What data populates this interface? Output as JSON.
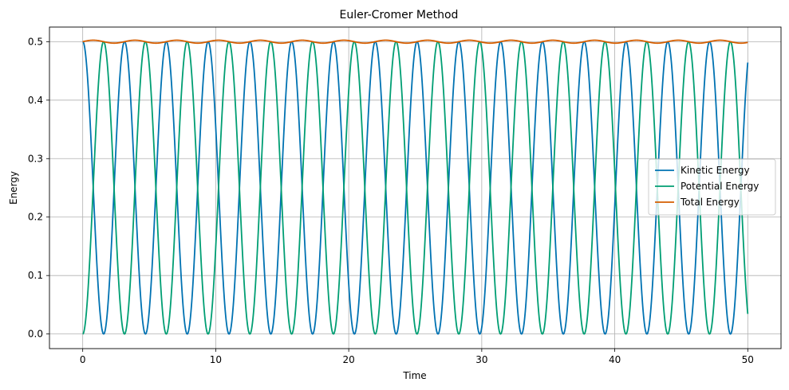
{
  "chart_data": {
    "type": "line",
    "title": "Euler-Cromer Method",
    "xlabel": "Time",
    "ylabel": "Energy",
    "xlim": [
      -2.5,
      52.5
    ],
    "ylim": [
      -0.025,
      0.525
    ],
    "xticks": [
      0,
      10,
      20,
      30,
      40,
      50
    ],
    "xtick_labels": [
      "0",
      "10",
      "20",
      "30",
      "40",
      "50"
    ],
    "yticks": [
      0.0,
      0.1,
      0.2,
      0.3,
      0.4,
      0.5
    ],
    "ytick_labels": [
      "0.0",
      "0.1",
      "0.2",
      "0.3",
      "0.4",
      "0.5"
    ],
    "grid": true,
    "legend_position": "center-right",
    "time_step": 0.01,
    "t_range": [
      0,
      50
    ],
    "series": [
      {
        "name": "Kinetic Energy",
        "color": "#0072B2",
        "initial_value": 0.5,
        "final_value": 0.465
      },
      {
        "name": "Potential Energy",
        "color": "#009E73",
        "initial_value": 0.0,
        "final_value": 0.036
      },
      {
        "name": "Total Energy",
        "color": "#D55E00",
        "mean_value": 0.5,
        "oscillation_range": [
          0.4975,
          0.5025
        ]
      }
    ]
  }
}
